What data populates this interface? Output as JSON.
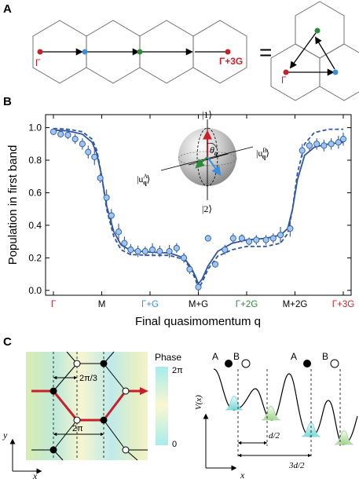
{
  "panels": {
    "a": {
      "label": "A",
      "gamma": "Γ",
      "gamma3g": "Γ+3G",
      "equals": "=",
      "gamma_right": "Γ",
      "colors": {
        "gamma": "#c8202a",
        "blue": "#3a8fe0",
        "green": "#2e8b3a"
      }
    },
    "b": {
      "label": "B",
      "bloch": {
        "ket1": "|1⟩",
        "ket2": "|2⟩",
        "uA": "|u",
        "uB": "|u",
        "theta": "θ"
      }
    },
    "c": {
      "label": "C",
      "phase_title": "Phase",
      "phase_max": "2π",
      "phase_min": "0",
      "dim_2pi3": "2π/3",
      "dim_2pi": "2π",
      "axis_x": "x",
      "axis_y": "y",
      "pot_A1": "A",
      "pot_B1": "B",
      "pot_A2": "A",
      "pot_B2": "B",
      "pot_ylabel": "V(x)",
      "pot_d2": "d/2",
      "pot_3d2": "3d/2",
      "pot_x": "x"
    }
  },
  "chart_data": {
    "type": "line",
    "xlabel": "Final quasimomentum q",
    "ylabel": "Population in first band",
    "ylim": [
      -0.03,
      1.08
    ],
    "yticks": [
      "0.0",
      "0.2",
      "0.4",
      "0.6",
      "0.8",
      "1.0"
    ],
    "ytick_values": [
      0,
      0.2,
      0.4,
      0.6,
      0.8,
      1.0
    ],
    "xlim": [
      0,
      6
    ],
    "xticks": [
      {
        "label": "Γ",
        "x": 0,
        "color": "#c8202a"
      },
      {
        "label": "M",
        "x": 1,
        "color": "#000000"
      },
      {
        "label": "Γ+G",
        "x": 2,
        "color": "#3a8fe0"
      },
      {
        "label": "M+G",
        "x": 3,
        "color": "#000000"
      },
      {
        "label": "Γ+2G",
        "x": 4,
        "color": "#2e8b3a"
      },
      {
        "label": "M+2G",
        "x": 5,
        "color": "#000000"
      },
      {
        "label": "Γ+3G",
        "x": 6,
        "color": "#c8202a"
      }
    ],
    "points": [
      {
        "x": 0.0,
        "y": 0.975,
        "err": 0.02
      },
      {
        "x": 0.15,
        "y": 0.96,
        "err": 0.02
      },
      {
        "x": 0.3,
        "y": 0.955,
        "err": 0.025
      },
      {
        "x": 0.45,
        "y": 0.93,
        "err": 0.03
      },
      {
        "x": 0.6,
        "y": 0.9,
        "err": 0.035
      },
      {
        "x": 0.72,
        "y": 0.85,
        "err": 0.04
      },
      {
        "x": 0.85,
        "y": 0.82,
        "err": 0.05
      },
      {
        "x": 0.97,
        "y": 0.69,
        "err": 0.03
      },
      {
        "x": 1.1,
        "y": 0.57,
        "err": 0.05
      },
      {
        "x": 1.2,
        "y": 0.46,
        "err": 0.04
      },
      {
        "x": 1.35,
        "y": 0.36,
        "err": 0.05
      },
      {
        "x": 1.47,
        "y": 0.29,
        "err": 0.04
      },
      {
        "x": 1.6,
        "y": 0.25,
        "err": 0.035
      },
      {
        "x": 1.75,
        "y": 0.24,
        "err": 0.035
      },
      {
        "x": 1.9,
        "y": 0.24,
        "err": 0.03
      },
      {
        "x": 2.05,
        "y": 0.25,
        "err": 0.04
      },
      {
        "x": 2.2,
        "y": 0.24,
        "err": 0.035
      },
      {
        "x": 2.4,
        "y": 0.24,
        "err": 0.04
      },
      {
        "x": 2.55,
        "y": 0.26,
        "err": 0.03
      },
      {
        "x": 2.7,
        "y": 0.2,
        "err": 0.03
      },
      {
        "x": 2.82,
        "y": 0.13,
        "err": 0.03
      },
      {
        "x": 3.0,
        "y": 0.02,
        "err": 0.03
      },
      {
        "x": 3.2,
        "y": 0.32,
        "err": 0.02
      },
      {
        "x": 3.35,
        "y": 0.16,
        "err": 0.02
      },
      {
        "x": 3.55,
        "y": 0.25,
        "err": 0.03
      },
      {
        "x": 3.72,
        "y": 0.32,
        "err": 0.03
      },
      {
        "x": 3.9,
        "y": 0.32,
        "err": 0.025
      },
      {
        "x": 4.05,
        "y": 0.3,
        "err": 0.025
      },
      {
        "x": 4.2,
        "y": 0.31,
        "err": 0.03
      },
      {
        "x": 4.4,
        "y": 0.31,
        "err": 0.03
      },
      {
        "x": 4.55,
        "y": 0.32,
        "err": 0.03
      },
      {
        "x": 4.7,
        "y": 0.34,
        "err": 0.05
      },
      {
        "x": 4.9,
        "y": 0.38,
        "err": 0.05
      },
      {
        "x": 5.15,
        "y": 0.86,
        "err": 0.04
      },
      {
        "x": 5.3,
        "y": 0.89,
        "err": 0.03
      },
      {
        "x": 5.45,
        "y": 0.9,
        "err": 0.035
      },
      {
        "x": 5.6,
        "y": 0.89,
        "err": 0.035
      },
      {
        "x": 5.75,
        "y": 0.9,
        "err": 0.035
      },
      {
        "x": 5.9,
        "y": 0.91,
        "err": 0.04
      },
      {
        "x": 6.0,
        "y": 0.93,
        "err": 0.04
      }
    ],
    "series": [
      {
        "style": "solid",
        "x": [
          0.0,
          0.3,
          0.6,
          0.8,
          0.9,
          1.0,
          1.1,
          1.25,
          1.4,
          1.6,
          2.0,
          2.4,
          2.7,
          2.85,
          2.95,
          3.0,
          3.08,
          3.2,
          3.4,
          3.7,
          4.0,
          4.4,
          4.7,
          4.85,
          4.95,
          5.05,
          5.2,
          5.4,
          5.7,
          6.0
        ],
        "y": [
          0.985,
          0.98,
          0.96,
          0.91,
          0.84,
          0.7,
          0.52,
          0.36,
          0.28,
          0.245,
          0.235,
          0.23,
          0.2,
          0.14,
          0.08,
          0.04,
          0.07,
          0.15,
          0.24,
          0.29,
          0.31,
          0.32,
          0.34,
          0.38,
          0.5,
          0.68,
          0.83,
          0.88,
          0.9,
          0.91
        ]
      },
      {
        "style": "dashed",
        "x": [
          0.0,
          0.3,
          0.6,
          0.8,
          0.9,
          1.0,
          1.1,
          1.25,
          1.4,
          1.6,
          2.0,
          2.4,
          2.7,
          2.85,
          2.95,
          3.0,
          3.08,
          3.2,
          3.4,
          3.7,
          4.0,
          4.4,
          4.7,
          4.85,
          4.95,
          5.05,
          5.2,
          5.4,
          5.7,
          6.0
        ],
        "y": [
          0.995,
          0.99,
          0.975,
          0.93,
          0.86,
          0.7,
          0.5,
          0.33,
          0.25,
          0.22,
          0.215,
          0.215,
          0.19,
          0.13,
          0.06,
          0.01,
          0.05,
          0.13,
          0.21,
          0.25,
          0.27,
          0.27,
          0.29,
          0.35,
          0.5,
          0.72,
          0.9,
          0.97,
          0.99,
          0.99
        ]
      }
    ],
    "grid": false,
    "legend": "none"
  }
}
